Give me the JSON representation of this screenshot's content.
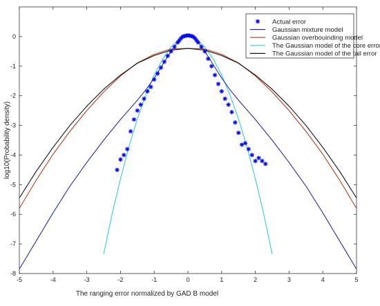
{
  "chart_data": {
    "type": "line",
    "title": "",
    "xlabel": "The ranging error normalized by GAD B model",
    "ylabel": "log10(Probability density)",
    "xlim": [
      -5,
      5
    ],
    "ylim": [
      -8,
      1
    ],
    "xticks": [
      -5,
      -4,
      -3,
      -2,
      -1,
      0,
      1,
      2,
      3,
      4,
      5
    ],
    "yticks": [
      -8,
      -7,
      -6,
      -5,
      -4,
      -3,
      -2,
      -1,
      0
    ],
    "grid": false,
    "legend_position": "top-right",
    "series": [
      {
        "name": "Actual error",
        "style": "markers",
        "color": "#0000ff",
        "x": [
          -2.1,
          -2.0,
          -1.9,
          -1.8,
          -1.7,
          -1.6,
          -1.5,
          -1.4,
          -1.3,
          -1.2,
          -1.1,
          -1.0,
          -0.9,
          -0.8,
          -0.7,
          -0.6,
          -0.5,
          -0.4,
          -0.3,
          -0.25,
          -0.2,
          -0.15,
          -0.1,
          -0.05,
          0.0,
          0.05,
          0.1,
          0.15,
          0.2,
          0.25,
          0.3,
          0.4,
          0.5,
          0.6,
          0.7,
          0.8,
          0.9,
          1.0,
          1.1,
          1.2,
          1.3,
          1.4,
          1.5,
          1.6,
          1.7,
          1.8,
          1.9,
          2.0,
          2.1,
          2.2,
          2.3
        ],
        "y": [
          -4.5,
          -4.15,
          -4.0,
          -3.8,
          -3.2,
          -2.8,
          -2.5,
          -2.3,
          -2.1,
          -1.85,
          -1.7,
          -1.45,
          -1.25,
          -1.05,
          -0.85,
          -0.65,
          -0.5,
          -0.35,
          -0.2,
          -0.12,
          -0.05,
          0.0,
          0.02,
          0.03,
          0.04,
          0.03,
          0.02,
          0.0,
          -0.05,
          -0.12,
          -0.2,
          -0.35,
          -0.5,
          -0.75,
          -1.0,
          -1.3,
          -1.6,
          -1.85,
          -2.1,
          -2.3,
          -2.55,
          -2.9,
          -3.25,
          -3.65,
          -3.6,
          -3.8,
          -4.0,
          -4.2,
          -4.1,
          -4.2,
          -4.3
        ]
      },
      {
        "name": "Gaussian mixture model",
        "style": "line",
        "color": "#2b2bb8",
        "x": [
          -5,
          -4.5,
          -4,
          -3.5,
          -3,
          -2.5,
          -2,
          -1.5,
          -1.25,
          -1,
          -0.75,
          -0.5,
          -0.25,
          0,
          0.25,
          0.5,
          0.75,
          1,
          1.25,
          1.5,
          2,
          2.5,
          3,
          3.5,
          4,
          4.5,
          5
        ],
        "y": [
          -7.85,
          -6.9,
          -5.95,
          -5.05,
          -4.25,
          -3.5,
          -2.8,
          -2.15,
          -1.8,
          -1.4,
          -0.95,
          -0.5,
          -0.1,
          0.05,
          -0.1,
          -0.5,
          -0.95,
          -1.4,
          -1.8,
          -2.15,
          -2.8,
          -3.5,
          -4.25,
          -5.05,
          -5.95,
          -6.9,
          -7.85
        ]
      },
      {
        "name": "Gaussian overbouinding model",
        "style": "line",
        "color": "#c0391b",
        "x": [
          -5,
          -4.5,
          -4,
          -3.5,
          -3,
          -2.5,
          -2,
          -1.5,
          -1,
          -0.5,
          0,
          0.5,
          1,
          1.5,
          2,
          2.5,
          3,
          3.5,
          4,
          4.5,
          5
        ],
        "y": [
          -5.8,
          -4.85,
          -3.97,
          -3.2,
          -2.5,
          -1.87,
          -1.33,
          -0.89,
          -0.6,
          -0.42,
          -0.4,
          -0.42,
          -0.6,
          -0.89,
          -1.33,
          -1.87,
          -2.5,
          -3.2,
          -3.97,
          -4.85,
          -5.8
        ]
      },
      {
        "name": "The Gaussian model of the core error",
        "style": "line",
        "color": "#33ccee",
        "x": [
          -2.5,
          -2.25,
          -2,
          -1.75,
          -1.5,
          -1.25,
          -1,
          -0.75,
          -0.5,
          -0.25,
          0,
          0.25,
          0.5,
          0.75,
          1,
          1.25,
          1.5,
          1.75,
          2,
          2.25,
          2.5
        ],
        "y": [
          -7.35,
          -6.0,
          -4.8,
          -3.72,
          -2.78,
          -1.98,
          -1.3,
          -0.76,
          -0.35,
          -0.08,
          0.0,
          -0.08,
          -0.35,
          -0.76,
          -1.3,
          -1.98,
          -2.78,
          -3.72,
          -4.8,
          -6.0,
          -7.35
        ]
      },
      {
        "name": "The Gaussian model of the tail error",
        "style": "line",
        "color": "#111111",
        "x": [
          -5,
          -4.5,
          -4,
          -3.5,
          -3,
          -2.5,
          -2,
          -1.5,
          -1,
          -0.5,
          0,
          0.5,
          1,
          1.5,
          2,
          2.5,
          3,
          3.5,
          4,
          4.5,
          5
        ],
        "y": [
          -5.45,
          -4.55,
          -3.74,
          -3.0,
          -2.35,
          -1.78,
          -1.3,
          -0.9,
          -0.64,
          -0.46,
          -0.4,
          -0.46,
          -0.64,
          -0.9,
          -1.3,
          -1.78,
          -2.35,
          -3.0,
          -3.74,
          -4.55,
          -5.45
        ]
      }
    ]
  }
}
